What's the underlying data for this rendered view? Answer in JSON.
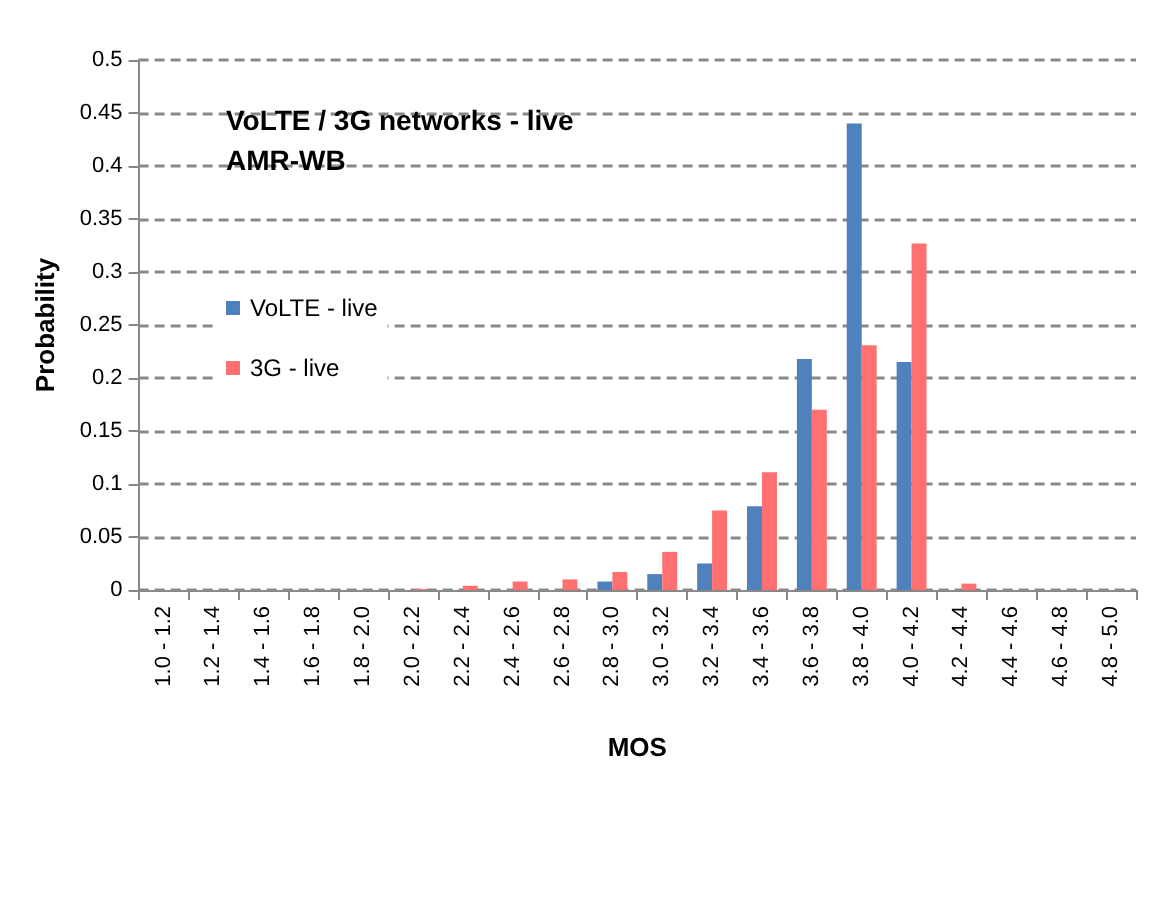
{
  "chart_data": {
    "type": "bar",
    "title": "VoLTE / 3G networks - live",
    "subtitle": "AMR-WB",
    "xlabel": "MOS",
    "ylabel": "Probability",
    "categories": [
      "1.0 - 1.2",
      "1.2 - 1.4",
      "1.4 - 1.6",
      "1.6 - 1.8",
      "1.8 - 2.0",
      "2.0 - 2.2",
      "2.2 - 2.4",
      "2.4 - 2.6",
      "2.6 - 2.8",
      "2.8 - 3.0",
      "3.0 - 3.2",
      "3.2 - 3.4",
      "3.4 - 3.6",
      "3.6 - 3.8",
      "3.8 - 4.0",
      "4.0 - 4.2",
      "4.2 - 4.4",
      "4.4 - 4.6",
      "4.6 - 4.8",
      "4.8 - 5.0"
    ],
    "series": [
      {
        "name": "VoLTE - live",
        "color": "#4f81bd",
        "values": [
          0,
          0,
          0,
          0,
          0,
          0,
          0,
          0,
          0,
          0.008,
          0.015,
          0.025,
          0.079,
          0.218,
          0.44,
          0.215,
          0,
          0,
          0,
          0
        ]
      },
      {
        "name": "3G - live",
        "color": "#ff7070",
        "values": [
          0,
          0,
          0,
          0,
          0,
          0.001,
          0.004,
          0.008,
          0.01,
          0.017,
          0.036,
          0.075,
          0.111,
          0.17,
          0.231,
          0.327,
          0.006,
          0,
          0,
          0
        ]
      }
    ],
    "ylim": [
      0,
      0.5
    ],
    "yticks": [
      0,
      0.05,
      0.1,
      0.15,
      0.2,
      0.25,
      0.3,
      0.35,
      0.4,
      0.45,
      0.5
    ],
    "grid": "y",
    "legend": "left"
  }
}
